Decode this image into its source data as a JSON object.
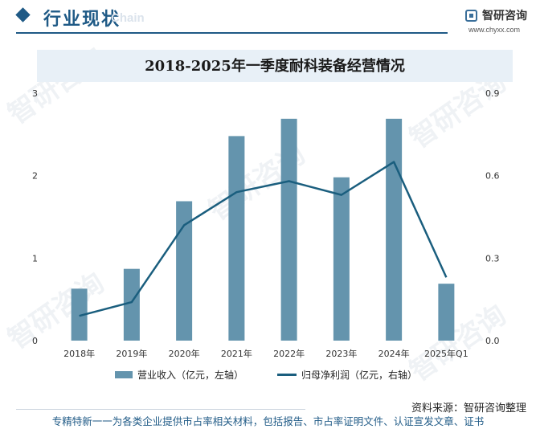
{
  "header": {
    "section_title": "行业现状",
    "section_watermark": "Chain",
    "brand_name": "智研咨询",
    "brand_url": "www.chyxx.com",
    "accent_color": "#1f5a86"
  },
  "chart_data": {
    "type": "bar+line",
    "title": "2018-2025年一季度耐科装备经营情况",
    "categories": [
      "2018年",
      "2019年",
      "2020年",
      "2021年",
      "2022年",
      "2023年",
      "2024年",
      "2025年Q1"
    ],
    "series": [
      {
        "name": "营业收入（亿元，左轴）",
        "type": "bar",
        "axis": "left",
        "color": "#6494ad",
        "values": [
          0.63,
          0.87,
          1.69,
          2.48,
          2.69,
          1.98,
          2.69,
          0.69
        ]
      },
      {
        "name": "归母净利润（亿元，右轴）",
        "type": "line",
        "axis": "right",
        "color": "#1a5e7e",
        "values": [
          0.09,
          0.14,
          0.42,
          0.54,
          0.58,
          0.53,
          0.65,
          0.23
        ]
      }
    ],
    "y_left": {
      "range": [
        0,
        3
      ],
      "ticks": [
        "0",
        "1",
        "2",
        "3"
      ]
    },
    "y_right": {
      "range": [
        0,
        0.9
      ],
      "ticks": [
        "0.0",
        "0.3",
        "0.6",
        "0.9"
      ]
    },
    "grid": false,
    "legend_position": "bottom"
  },
  "source": "资料来源：智研咨询整理",
  "footer": "专精特新一一为各类企业提供市占率相关材料，包括报告、市占率证明文件、认证宣发文章、证书",
  "watermark_text": "智研咨询"
}
